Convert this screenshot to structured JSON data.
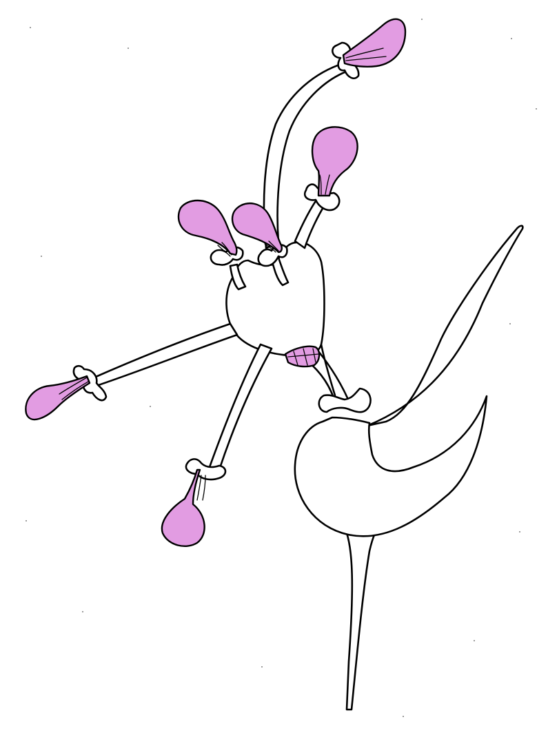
{
  "canvas": {
    "background": "#ffffff"
  },
  "colors": {
    "ink": "#000000",
    "fill": "#ffffff",
    "flower": "#e29ce2"
  },
  "subject": {
    "icon": "plant-drawing-icon",
    "flower_count": 7,
    "bud_count": 1
  }
}
